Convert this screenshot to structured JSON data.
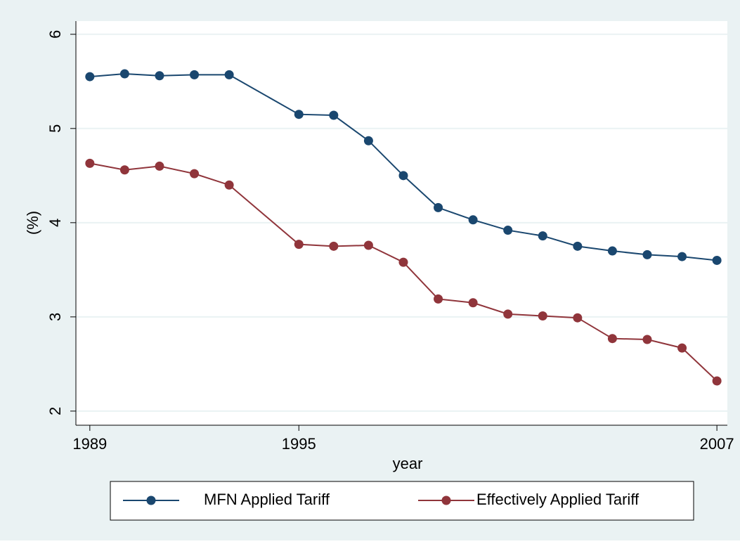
{
  "chart_data": {
    "type": "line",
    "x_label": "year",
    "y_label": "(%)",
    "x": [
      1989,
      1990,
      1991,
      1992,
      1993,
      1995,
      1996,
      1997,
      1998,
      1999,
      2000,
      2001,
      2002,
      2003,
      2004,
      2005,
      2006,
      2007
    ],
    "series": [
      {
        "name": "MFN Applied Tariff",
        "color": "#1a476f",
        "values": [
          5.55,
          5.58,
          5.56,
          5.57,
          5.57,
          5.15,
          5.14,
          4.87,
          4.5,
          4.16,
          4.03,
          3.92,
          3.86,
          3.75,
          3.7,
          3.66,
          3.64,
          3.6
        ]
      },
      {
        "name": "Effectively Applied Tariff",
        "color": "#90353b",
        "values": [
          4.63,
          4.56,
          4.6,
          4.52,
          4.4,
          3.77,
          3.75,
          3.76,
          3.58,
          3.19,
          3.15,
          3.03,
          3.01,
          2.99,
          2.77,
          2.76,
          2.67,
          2.32
        ]
      }
    ],
    "xlim": [
      1988.6,
      2007.3
    ],
    "xticks": [
      1989,
      1995,
      2007
    ],
    "ylim": [
      1.85,
      6.14
    ],
    "yticks": [
      2,
      3,
      4,
      5,
      6
    ],
    "grid": true,
    "legend": "bottom"
  }
}
